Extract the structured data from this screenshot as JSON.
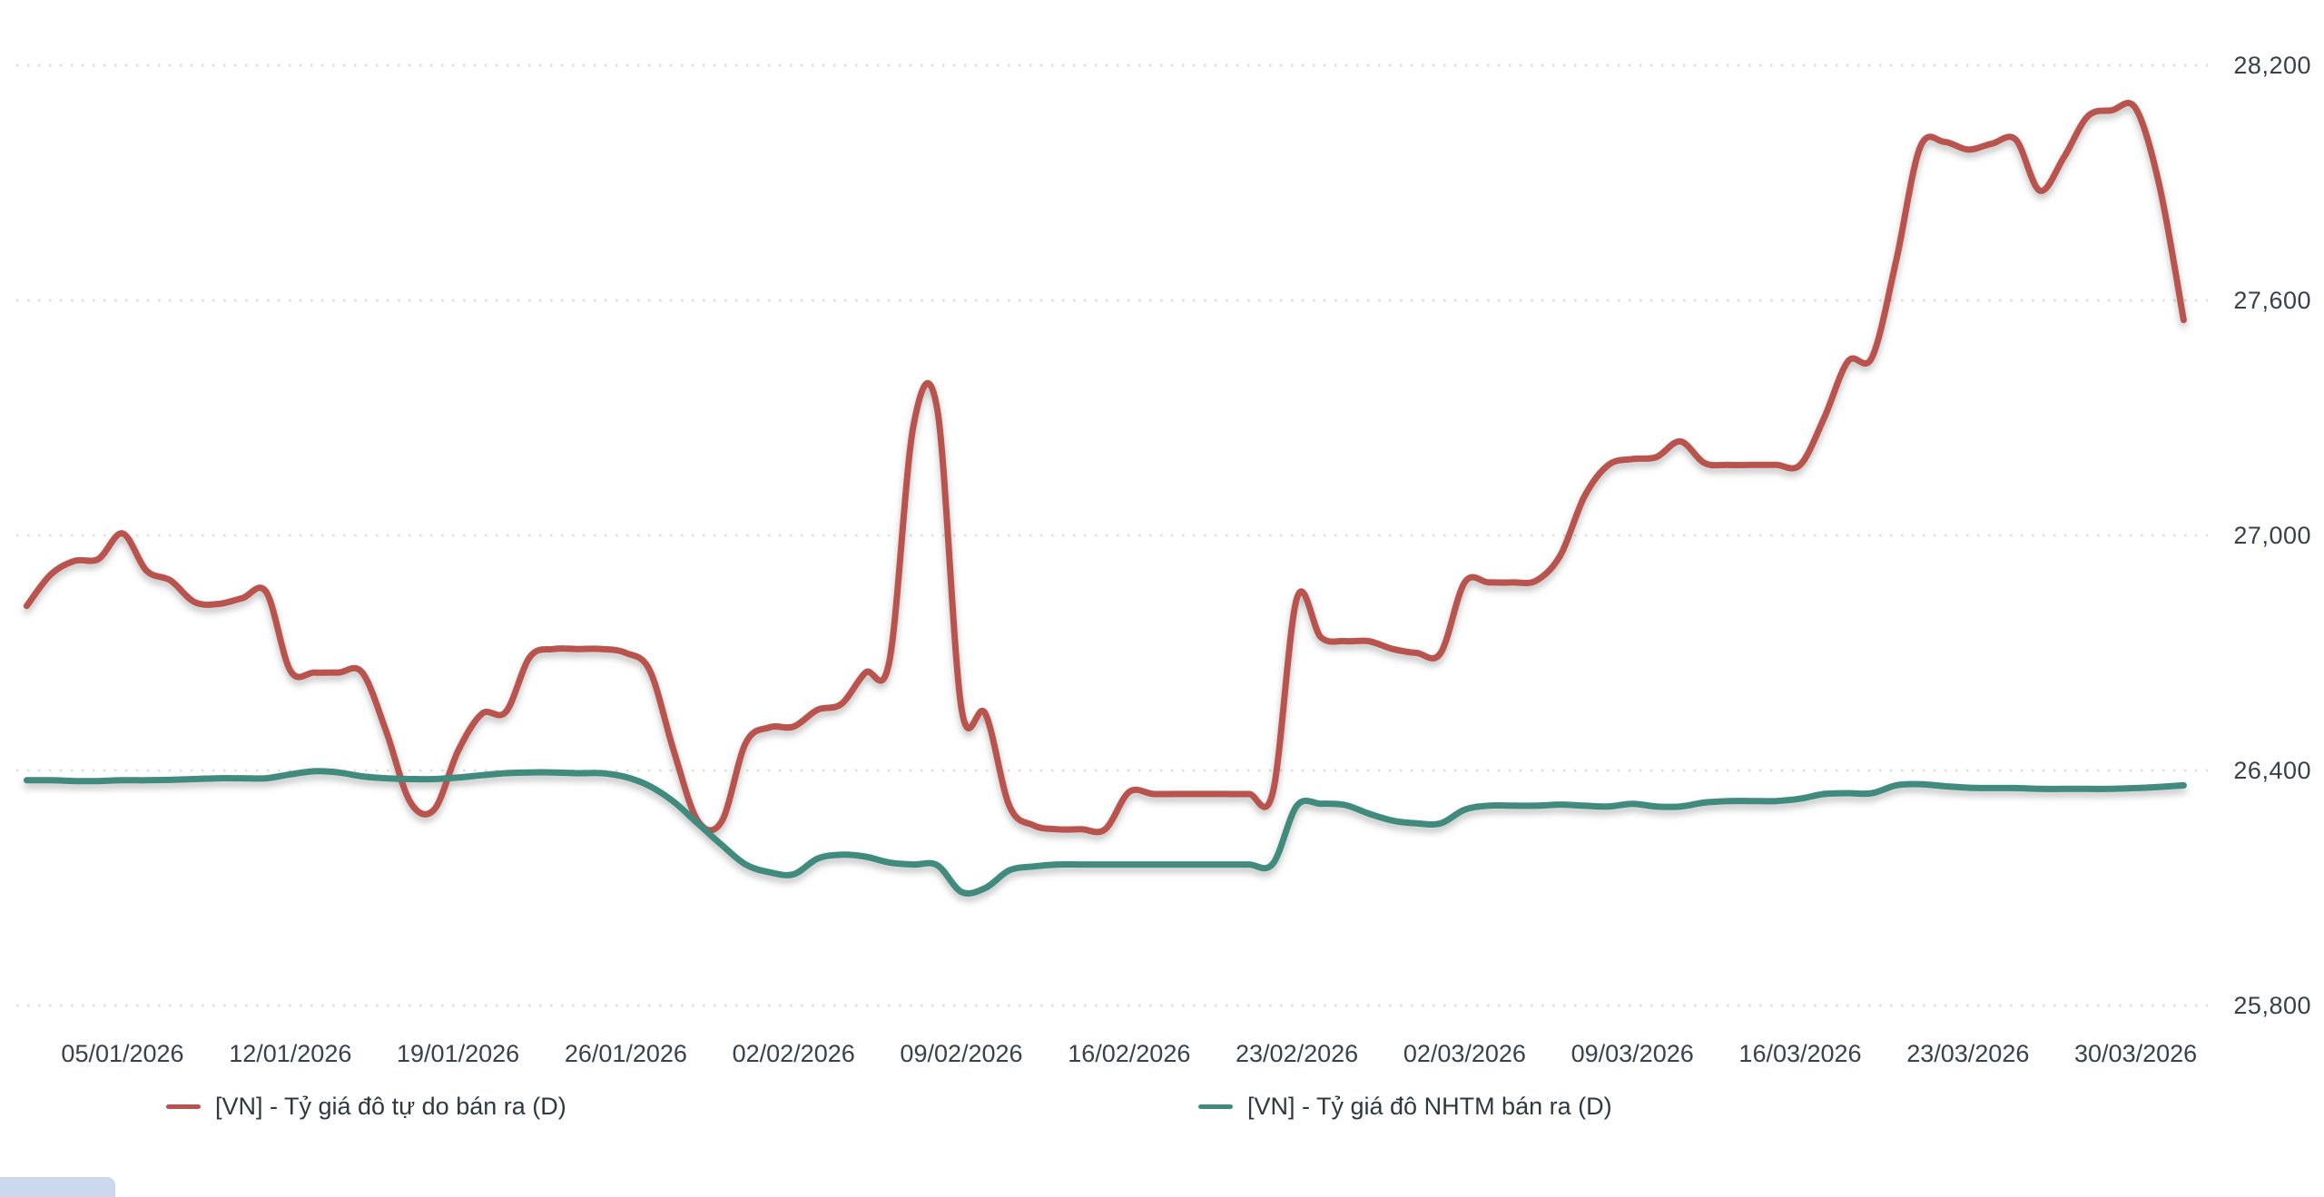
{
  "chart_data": {
    "type": "line",
    "title": "",
    "xlabel": "",
    "ylabel": "",
    "grid": "horizontal-dotted",
    "legend_position": "bottom",
    "y_ticks": [
      25800,
      26400,
      27000,
      27600,
      28200
    ],
    "y_tick_labels": [
      "25,800",
      "26,400",
      "27,000",
      "27,600",
      "28,200"
    ],
    "ylim": [
      25800,
      28200
    ],
    "x_tick_labels": [
      "05/01/2026",
      "12/01/2026",
      "19/01/2026",
      "26/01/2026",
      "02/02/2026",
      "09/02/2026",
      "16/02/2026",
      "23/02/2026",
      "02/03/2026",
      "09/03/2026",
      "16/03/2026",
      "23/03/2026",
      "30/03/2026"
    ],
    "x": [
      "01/01/2026",
      "02/01/2026",
      "03/01/2026",
      "04/01/2026",
      "05/01/2026",
      "06/01/2026",
      "07/01/2026",
      "08/01/2026",
      "09/01/2026",
      "10/01/2026",
      "11/01/2026",
      "12/01/2026",
      "13/01/2026",
      "14/01/2026",
      "15/01/2026",
      "16/01/2026",
      "17/01/2026",
      "18/01/2026",
      "19/01/2026",
      "20/01/2026",
      "21/01/2026",
      "22/01/2026",
      "23/01/2026",
      "24/01/2026",
      "25/01/2026",
      "26/01/2026",
      "27/01/2026",
      "28/01/2026",
      "29/01/2026",
      "30/01/2026",
      "31/01/2026",
      "01/02/2026",
      "02/02/2026",
      "03/02/2026",
      "04/02/2026",
      "05/02/2026",
      "06/02/2026",
      "07/02/2026",
      "08/02/2026",
      "09/02/2026",
      "10/02/2026",
      "11/02/2026",
      "12/02/2026",
      "13/02/2026",
      "14/02/2026",
      "15/02/2026",
      "16/02/2026",
      "17/02/2026",
      "18/02/2026",
      "19/02/2026",
      "20/02/2026",
      "21/02/2026",
      "22/02/2026",
      "23/02/2026",
      "24/02/2026",
      "25/02/2026",
      "26/02/2026",
      "27/02/2026",
      "28/02/2026",
      "01/03/2026",
      "02/03/2026",
      "03/03/2026",
      "04/03/2026",
      "05/03/2026",
      "06/03/2026",
      "07/03/2026",
      "08/03/2026",
      "09/03/2026",
      "10/03/2026",
      "11/03/2026",
      "12/03/2026",
      "13/03/2026",
      "14/03/2026",
      "15/03/2026",
      "16/03/2026",
      "17/03/2026",
      "18/03/2026",
      "19/03/2026",
      "20/03/2026",
      "21/03/2026",
      "22/03/2026",
      "23/03/2026",
      "24/03/2026",
      "25/03/2026",
      "26/03/2026",
      "27/03/2026",
      "28/03/2026",
      "29/03/2026",
      "30/03/2026",
      "31/03/2026",
      "01/04/2026"
    ],
    "series": [
      {
        "name": "[VN] - Tỷ giá đô tự do bán ra (D)",
        "color": "#b8524e",
        "values": [
          26820,
          26900,
          26935,
          26940,
          27005,
          26910,
          26885,
          26830,
          26825,
          26840,
          26855,
          26655,
          26650,
          26650,
          26650,
          26500,
          26320,
          26300,
          26450,
          26545,
          26550,
          26690,
          26710,
          26710,
          26710,
          26700,
          26655,
          26450,
          26272,
          26270,
          26470,
          26510,
          26512,
          26555,
          26570,
          26650,
          26680,
          27280,
          27320,
          26560,
          26545,
          26310,
          26260,
          26250,
          26250,
          26250,
          26345,
          26340,
          26340,
          26340,
          26340,
          26340,
          26345,
          26840,
          26740,
          26730,
          26730,
          26710,
          26700,
          26700,
          26880,
          26880,
          26880,
          26885,
          26950,
          27100,
          27180,
          27195,
          27200,
          27240,
          27185,
          27180,
          27180,
          27180,
          27180,
          27300,
          27445,
          27455,
          27700,
          27990,
          28005,
          27985,
          28000,
          28010,
          27880,
          27965,
          28070,
          28085,
          28090,
          27890,
          27550
        ]
      },
      {
        "name": "[VN] - Tỷ giá đô NHTM bán ra (D)",
        "color": "#3f8a7e",
        "values": [
          26375,
          26375,
          26373,
          26373,
          26375,
          26375,
          26376,
          26378,
          26380,
          26380,
          26380,
          26390,
          26398,
          26395,
          26385,
          26380,
          26378,
          26378,
          26382,
          26388,
          26393,
          26395,
          26395,
          26393,
          26393,
          26383,
          26360,
          26320,
          26265,
          26210,
          26160,
          26140,
          26135,
          26175,
          26185,
          26180,
          26165,
          26160,
          26158,
          26090,
          26100,
          26145,
          26155,
          26160,
          26160,
          26160,
          26160,
          26160,
          26160,
          26160,
          26160,
          26160,
          26162,
          26310,
          26315,
          26312,
          26290,
          26272,
          26265,
          26265,
          26300,
          26310,
          26310,
          26310,
          26313,
          26310,
          26308,
          26315,
          26308,
          26308,
          26318,
          26322,
          26322,
          26322,
          26328,
          26340,
          26342,
          26342,
          26362,
          26365,
          26360,
          26356,
          26355,
          26355,
          26353,
          26353,
          26353,
          26353,
          26355,
          26358,
          26362
        ]
      }
    ]
  },
  "legend": {
    "item1_label": "[VN] - Tỷ giá đô tự do bán ra (D)",
    "item2_label": "[VN] - Tỷ giá đô NHTM bán ra (D)"
  },
  "colors": {
    "series1": "#b8524e",
    "series2": "#3f8a7e",
    "grid": "#dcdcdc",
    "tick_text": "#36414c"
  }
}
